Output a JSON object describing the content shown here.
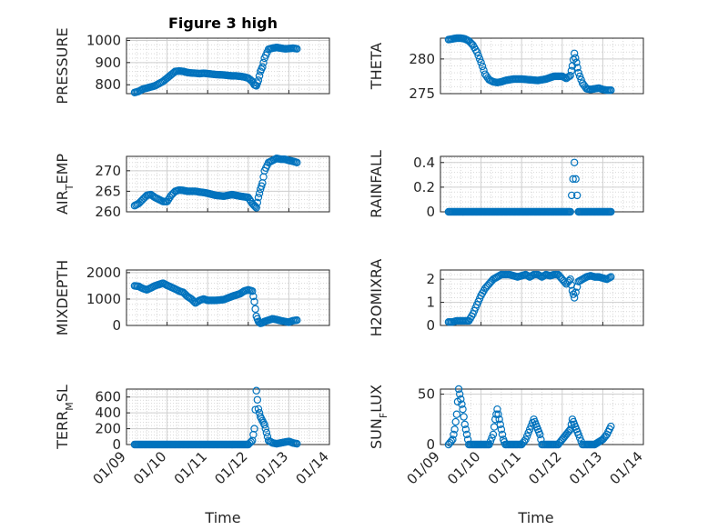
{
  "figure": {
    "title": "Figure 3 high",
    "xlabel": "Time",
    "x_ticks": [
      "01/09",
      "01/10",
      "01/11",
      "01/12",
      "01/13",
      "01/14"
    ],
    "marker_color": "#0072BD",
    "grid_color": "#d9d9d9"
  },
  "chart_data": [
    {
      "type": "scatter",
      "ylabel": "PRESSURE",
      "ylim": [
        760,
        1010
      ],
      "yticks": [
        800,
        900,
        1000
      ],
      "x": [
        9.2,
        9.3,
        9.4,
        9.5,
        9.6,
        9.7,
        9.8,
        9.9,
        10.0,
        10.1,
        10.2,
        10.3,
        10.4,
        10.5,
        10.6,
        10.7,
        10.8,
        10.9,
        11.0,
        11.1,
        11.2,
        11.3,
        11.4,
        11.5,
        11.6,
        11.7,
        11.8,
        11.9,
        12.0,
        12.1,
        12.15,
        12.2,
        12.25,
        12.3,
        12.35,
        12.4,
        12.5,
        12.6,
        12.7,
        12.8,
        12.9,
        13.0,
        13.1,
        13.2
      ],
      "y": [
        765,
        770,
        780,
        785,
        790,
        795,
        805,
        815,
        830,
        845,
        860,
        862,
        860,
        855,
        853,
        852,
        850,
        852,
        850,
        848,
        846,
        845,
        844,
        842,
        840,
        840,
        838,
        835,
        830,
        815,
        800,
        795,
        820,
        860,
        880,
        920,
        960,
        965,
        968,
        965,
        962,
        963,
        965,
        962
      ]
    },
    {
      "type": "scatter",
      "ylabel": "THETA",
      "ylim": [
        275,
        283
      ],
      "yticks": [
        275,
        280
      ],
      "x": [
        9.2,
        9.3,
        9.4,
        9.5,
        9.6,
        9.7,
        9.8,
        9.9,
        10.0,
        10.1,
        10.2,
        10.3,
        10.4,
        10.5,
        10.6,
        10.7,
        10.8,
        10.9,
        11.0,
        11.2,
        11.4,
        11.6,
        11.8,
        12.0,
        12.1,
        12.2,
        12.25,
        12.3,
        12.35,
        12.4,
        12.5,
        12.6,
        12.7,
        12.8,
        12.9,
        13.0,
        13.1,
        13.2
      ],
      "y": [
        282.8,
        282.9,
        283.0,
        283.0,
        282.9,
        282.6,
        282.0,
        281.0,
        279.5,
        277.8,
        277.0,
        276.7,
        276.6,
        276.7,
        276.9,
        277.0,
        277.1,
        277.1,
        277.1,
        277.0,
        276.9,
        277.1,
        277.5,
        277.5,
        277.2,
        277.6,
        279.0,
        280.8,
        279.5,
        278.0,
        276.5,
        275.7,
        275.6,
        275.7,
        275.8,
        275.6,
        275.5,
        275.5
      ]
    },
    {
      "type": "scatter",
      "ylabel": "AIR_TEMP",
      "ylabel_main": "AIR",
      "ylabel_sub": "T",
      "ylabel_rest": "EMP",
      "ylim": [
        260,
        273.5
      ],
      "yticks": [
        260,
        265,
        270
      ],
      "x": [
        9.2,
        9.3,
        9.4,
        9.5,
        9.6,
        9.7,
        9.8,
        9.9,
        10.0,
        10.1,
        10.2,
        10.3,
        10.4,
        10.5,
        10.6,
        10.7,
        10.8,
        10.9,
        11.0,
        11.2,
        11.4,
        11.6,
        11.8,
        12.0,
        12.1,
        12.15,
        12.2,
        12.25,
        12.3,
        12.35,
        12.4,
        12.5,
        12.6,
        12.7,
        12.8,
        12.9,
        13.0,
        13.1,
        13.2
      ],
      "y": [
        261.5,
        262.0,
        263.0,
        264.0,
        264.2,
        263.5,
        263.0,
        262.5,
        262.5,
        264.0,
        265.0,
        265.3,
        265.2,
        265.0,
        265.0,
        265.0,
        264.8,
        264.7,
        264.5,
        264.0,
        263.8,
        264.2,
        263.8,
        263.5,
        262.0,
        261.5,
        261.0,
        263.5,
        265.5,
        267.0,
        270.0,
        272.0,
        272.5,
        273.0,
        272.8,
        272.8,
        272.5,
        272.3,
        272.0
      ]
    },
    {
      "type": "scatter",
      "ylabel": "RAINFALL",
      "ylim": [
        0,
        0.45
      ],
      "yticks": [
        0,
        0.2,
        0.4
      ],
      "x": [
        9.2,
        9.4,
        9.6,
        9.8,
        10.0,
        10.2,
        10.4,
        10.6,
        10.8,
        11.0,
        11.2,
        11.4,
        11.6,
        11.8,
        12.0,
        12.2,
        12.3,
        12.4,
        12.6,
        12.8,
        13.0,
        13.2
      ],
      "y": [
        0,
        0,
        0,
        0,
        0,
        0,
        0,
        0,
        0,
        0,
        0,
        0,
        0,
        0,
        0,
        0,
        0.4,
        0,
        0,
        0,
        0,
        0
      ]
    },
    {
      "type": "scatter",
      "ylabel": "MIXDEPTH",
      "ylim": [
        0,
        2100
      ],
      "yticks": [
        0,
        1000,
        2000
      ],
      "x": [
        9.2,
        9.3,
        9.4,
        9.5,
        9.6,
        9.7,
        9.8,
        9.9,
        10.0,
        10.1,
        10.2,
        10.3,
        10.4,
        10.5,
        10.6,
        10.7,
        10.8,
        10.9,
        11.0,
        11.2,
        11.4,
        11.6,
        11.8,
        11.9,
        12.0,
        12.1,
        12.15,
        12.2,
        12.25,
        12.3,
        12.35,
        12.4,
        12.5,
        12.6,
        12.7,
        12.8,
        12.9,
        13.0,
        13.1,
        13.2
      ],
      "y": [
        1500,
        1480,
        1400,
        1350,
        1420,
        1500,
        1550,
        1600,
        1520,
        1450,
        1380,
        1300,
        1250,
        1100,
        1000,
        850,
        950,
        1000,
        950,
        950,
        980,
        1100,
        1200,
        1300,
        1350,
        1300,
        900,
        350,
        150,
        80,
        100,
        150,
        200,
        250,
        220,
        180,
        150,
        120,
        180,
        200
      ]
    },
    {
      "type": "scatter",
      "ylabel": "H2OMIXRA",
      "ylim": [
        0,
        2.4
      ],
      "yticks": [
        0,
        1,
        2
      ],
      "x": [
        9.2,
        9.3,
        9.4,
        9.5,
        9.6,
        9.7,
        9.8,
        9.9,
        10.0,
        10.1,
        10.2,
        10.3,
        10.4,
        10.5,
        10.6,
        10.7,
        10.8,
        10.9,
        11.0,
        11.1,
        11.2,
        11.3,
        11.4,
        11.5,
        11.6,
        11.7,
        11.8,
        11.9,
        12.0,
        12.1,
        12.2,
        12.25,
        12.3,
        12.4,
        12.5,
        12.6,
        12.7,
        12.8,
        12.9,
        13.0,
        13.1,
        13.2
      ],
      "y": [
        0.15,
        0.15,
        0.2,
        0.2,
        0.2,
        0.2,
        0.5,
        0.9,
        1.3,
        1.6,
        1.8,
        2.0,
        2.1,
        2.2,
        2.2,
        2.2,
        2.15,
        2.1,
        2.15,
        2.2,
        2.1,
        2.2,
        2.2,
        2.1,
        2.2,
        2.15,
        2.2,
        2.2,
        2.0,
        1.8,
        2.0,
        1.5,
        1.2,
        1.9,
        2.0,
        2.1,
        2.15,
        2.1,
        2.1,
        2.05,
        2.0,
        2.1
      ]
    },
    {
      "type": "scatter",
      "ylabel": "TERR_MSL",
      "ylabel_main": "TERR",
      "ylabel_sub": "M",
      "ylabel_rest": "SL",
      "ylim": [
        0,
        700
      ],
      "yticks": [
        0,
        200,
        400,
        600
      ],
      "x": [
        9.2,
        9.4,
        9.6,
        9.8,
        10.0,
        10.2,
        10.4,
        10.6,
        10.8,
        11.0,
        11.2,
        11.4,
        11.6,
        11.8,
        12.0,
        12.1,
        12.15,
        12.2,
        12.25,
        12.3,
        12.35,
        12.4,
        12.45,
        12.5,
        12.6,
        12.7,
        12.8,
        12.9,
        13.0,
        13.1,
        13.2
      ],
      "y": [
        0,
        0,
        0,
        0,
        0,
        0,
        0,
        0,
        0,
        0,
        0,
        0,
        0,
        0,
        0,
        50,
        200,
        680,
        450,
        350,
        300,
        250,
        150,
        50,
        20,
        10,
        20,
        30,
        40,
        20,
        10
      ]
    },
    {
      "type": "scatter",
      "ylabel": "SUN_FLUX",
      "ylabel_main": "SUN",
      "ylabel_sub": "F",
      "ylabel_rest": "LUX",
      "ylim": [
        0,
        55
      ],
      "yticks": [
        0,
        50
      ],
      "x": [
        9.2,
        9.3,
        9.35,
        9.4,
        9.45,
        9.5,
        9.55,
        9.6,
        9.65,
        9.7,
        9.8,
        10.0,
        10.2,
        10.3,
        10.35,
        10.4,
        10.45,
        10.5,
        10.55,
        10.6,
        10.7,
        10.9,
        11.0,
        11.1,
        11.2,
        11.3,
        11.35,
        11.4,
        11.45,
        11.5,
        11.6,
        11.8,
        11.9,
        12.0,
        12.2,
        12.25,
        12.3,
        12.35,
        12.4,
        12.5,
        12.6,
        12.8,
        13.0,
        13.1,
        13.2
      ],
      "y": [
        0,
        5,
        15,
        30,
        55,
        45,
        35,
        20,
        10,
        0,
        0,
        0,
        0,
        10,
        25,
        35,
        25,
        15,
        5,
        0,
        0,
        0,
        0,
        5,
        15,
        25,
        20,
        15,
        10,
        0,
        0,
        0,
        0,
        5,
        15,
        25,
        20,
        15,
        10,
        0,
        0,
        0,
        5,
        10,
        18
      ]
    }
  ]
}
